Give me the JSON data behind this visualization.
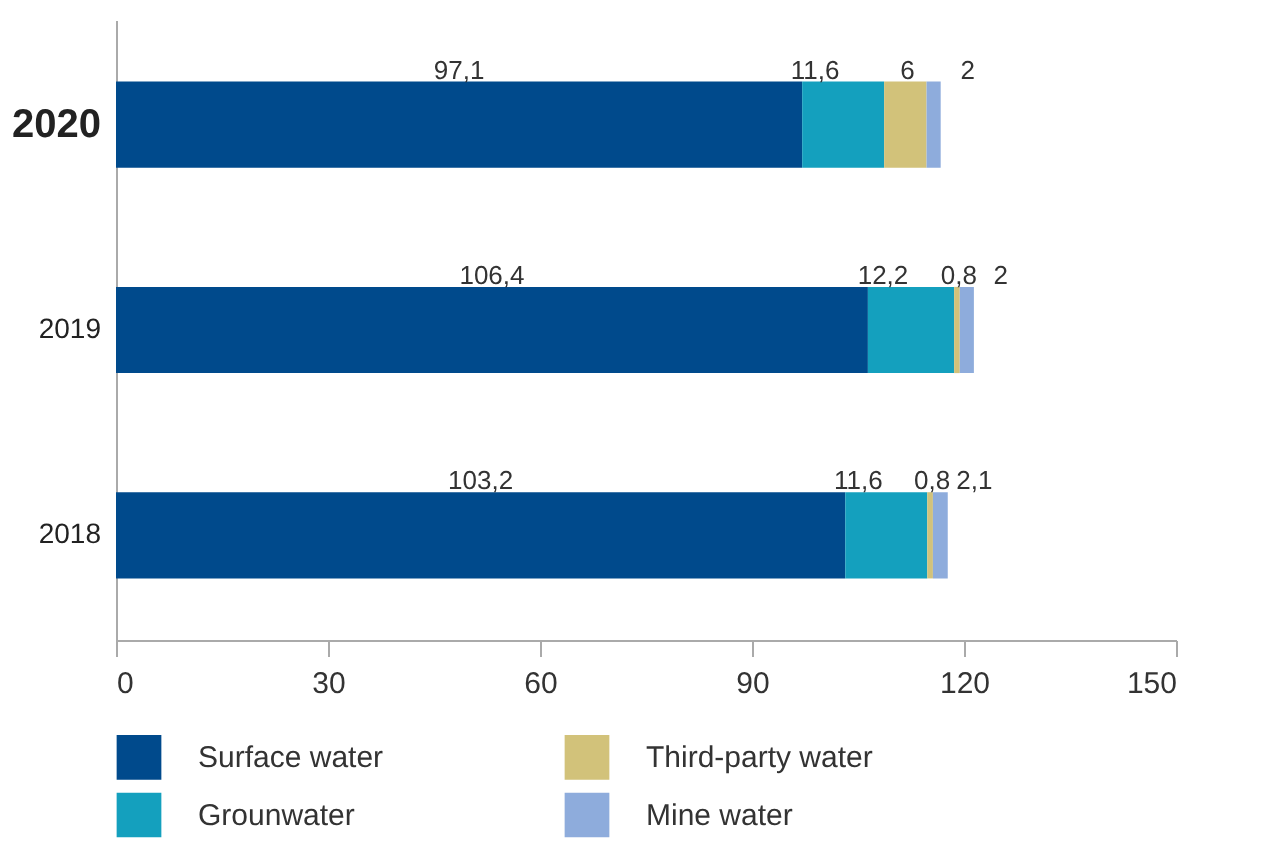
{
  "chart_data": {
    "type": "bar",
    "orientation": "horizontal",
    "stacked": true,
    "categories": [
      "2020",
      "2019",
      "2018"
    ],
    "series": [
      {
        "name": "Surface water",
        "color": "#004a8c",
        "values": [
          97.1,
          106.4,
          103.2
        ],
        "value_labels": [
          "97,1",
          "106,4",
          "103,2"
        ]
      },
      {
        "name": "Grounwater",
        "color": "#14a0be",
        "values": [
          11.6,
          12.2,
          11.6
        ],
        "value_labels": [
          "11,6",
          "12,2",
          "11,6"
        ]
      },
      {
        "name": "Third-party water",
        "color": "#d2c27a",
        "values": [
          6,
          0.8,
          0.8
        ],
        "value_labels": [
          "6",
          "0,8",
          "0,8"
        ]
      },
      {
        "name": "Mine water",
        "color": "#8eacdc",
        "values": [
          2,
          2,
          2.1
        ],
        "value_labels": [
          "2",
          "2",
          "2,1"
        ]
      }
    ],
    "xlim": [
      0,
      150
    ],
    "xticks": [
      0,
      30,
      60,
      90,
      120,
      150
    ],
    "grid": false,
    "legend": "bottom"
  }
}
